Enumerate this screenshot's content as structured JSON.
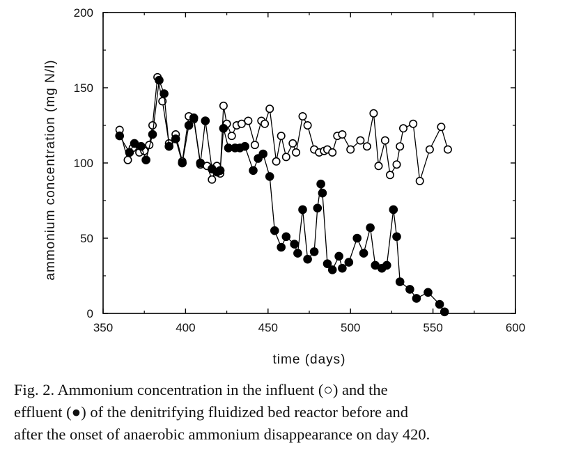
{
  "chart_data": {
    "type": "scatter",
    "xlabel": "time  (days)",
    "ylabel": "ammonium concentration  (mg N/l)",
    "xlim": [
      350,
      600
    ],
    "ylim": [
      0,
      200
    ],
    "xticks": [
      350,
      400,
      450,
      500,
      550,
      600
    ],
    "yticks": [
      0,
      50,
      100,
      150,
      200
    ],
    "grid": false,
    "series": [
      {
        "name": "influent",
        "marker": "open-circle",
        "color": "#000000",
        "points": [
          [
            360,
            122
          ],
          [
            365,
            102
          ],
          [
            368,
            110
          ],
          [
            372,
            107
          ],
          [
            375,
            108
          ],
          [
            378,
            112
          ],
          [
            380,
            125
          ],
          [
            383,
            157
          ],
          [
            386,
            141
          ],
          [
            390,
            113
          ],
          [
            394,
            119
          ],
          [
            398,
            101
          ],
          [
            402,
            131
          ],
          [
            405,
            129
          ],
          [
            409,
            99
          ],
          [
            413,
            98
          ],
          [
            416,
            89
          ],
          [
            419,
            98
          ],
          [
            421,
            93
          ],
          [
            423,
            138
          ],
          [
            425,
            126
          ],
          [
            428,
            118
          ],
          [
            431,
            125
          ],
          [
            434,
            126
          ],
          [
            438,
            128
          ],
          [
            442,
            112
          ],
          [
            446,
            128
          ],
          [
            448,
            126
          ],
          [
            451,
            136
          ],
          [
            455,
            101
          ],
          [
            458,
            118
          ],
          [
            461,
            104
          ],
          [
            465,
            113
          ],
          [
            467,
            107
          ],
          [
            471,
            131
          ],
          [
            474,
            125
          ],
          [
            478,
            109
          ],
          [
            481,
            107
          ],
          [
            484,
            108
          ],
          [
            486,
            109
          ],
          [
            489,
            107
          ],
          [
            492,
            118
          ],
          [
            495,
            119
          ],
          [
            500,
            109
          ],
          [
            506,
            115
          ],
          [
            510,
            111
          ],
          [
            514,
            133
          ],
          [
            517,
            98
          ],
          [
            521,
            115
          ],
          [
            524,
            92
          ],
          [
            528,
            99
          ],
          [
            530,
            111
          ],
          [
            532,
            123
          ],
          [
            538,
            126
          ],
          [
            542,
            88
          ],
          [
            548,
            109
          ],
          [
            555,
            124
          ],
          [
            559,
            109
          ]
        ]
      },
      {
        "name": "effluent",
        "marker": "filled-circle",
        "color": "#000000",
        "points": [
          [
            360,
            118
          ],
          [
            366,
            107
          ],
          [
            369,
            113
          ],
          [
            373,
            111
          ],
          [
            376,
            102
          ],
          [
            380,
            119
          ],
          [
            384,
            155
          ],
          [
            387,
            146
          ],
          [
            390,
            111
          ],
          [
            394,
            116
          ],
          [
            398,
            100
          ],
          [
            402,
            125
          ],
          [
            405,
            130
          ],
          [
            409,
            100
          ],
          [
            412,
            128
          ],
          [
            416,
            96
          ],
          [
            419,
            94
          ],
          [
            421,
            95
          ],
          [
            423,
            123
          ],
          [
            426,
            110
          ],
          [
            430,
            110
          ],
          [
            433,
            110
          ],
          [
            436,
            111
          ],
          [
            441,
            95
          ],
          [
            444,
            103
          ],
          [
            447,
            106
          ],
          [
            451,
            91
          ],
          [
            454,
            55
          ],
          [
            458,
            44
          ],
          [
            461,
            51
          ],
          [
            466,
            46
          ],
          [
            468,
            40
          ],
          [
            471,
            69
          ],
          [
            474,
            36
          ],
          [
            478,
            41
          ],
          [
            480,
            70
          ],
          [
            482,
            86
          ],
          [
            483,
            80
          ],
          [
            486,
            33
          ],
          [
            489,
            29
          ],
          [
            493,
            38
          ],
          [
            495,
            30
          ],
          [
            499,
            34
          ],
          [
            504,
            50
          ],
          [
            508,
            40
          ],
          [
            512,
            57
          ],
          [
            515,
            32
          ],
          [
            519,
            30
          ],
          [
            522,
            32
          ],
          [
            526,
            69
          ],
          [
            528,
            51
          ],
          [
            530,
            21
          ],
          [
            536,
            16
          ],
          [
            540,
            10
          ],
          [
            547,
            14
          ],
          [
            554,
            6
          ],
          [
            557,
            1
          ]
        ]
      }
    ]
  },
  "caption": {
    "lines": [
      "Fig. 2. Ammonium concentration in the influent (○) and the",
      "effluent (●) of the denitrifying fluidized bed reactor before and",
      "after the onset of anaerobic ammonium disappearance on day 420."
    ]
  }
}
